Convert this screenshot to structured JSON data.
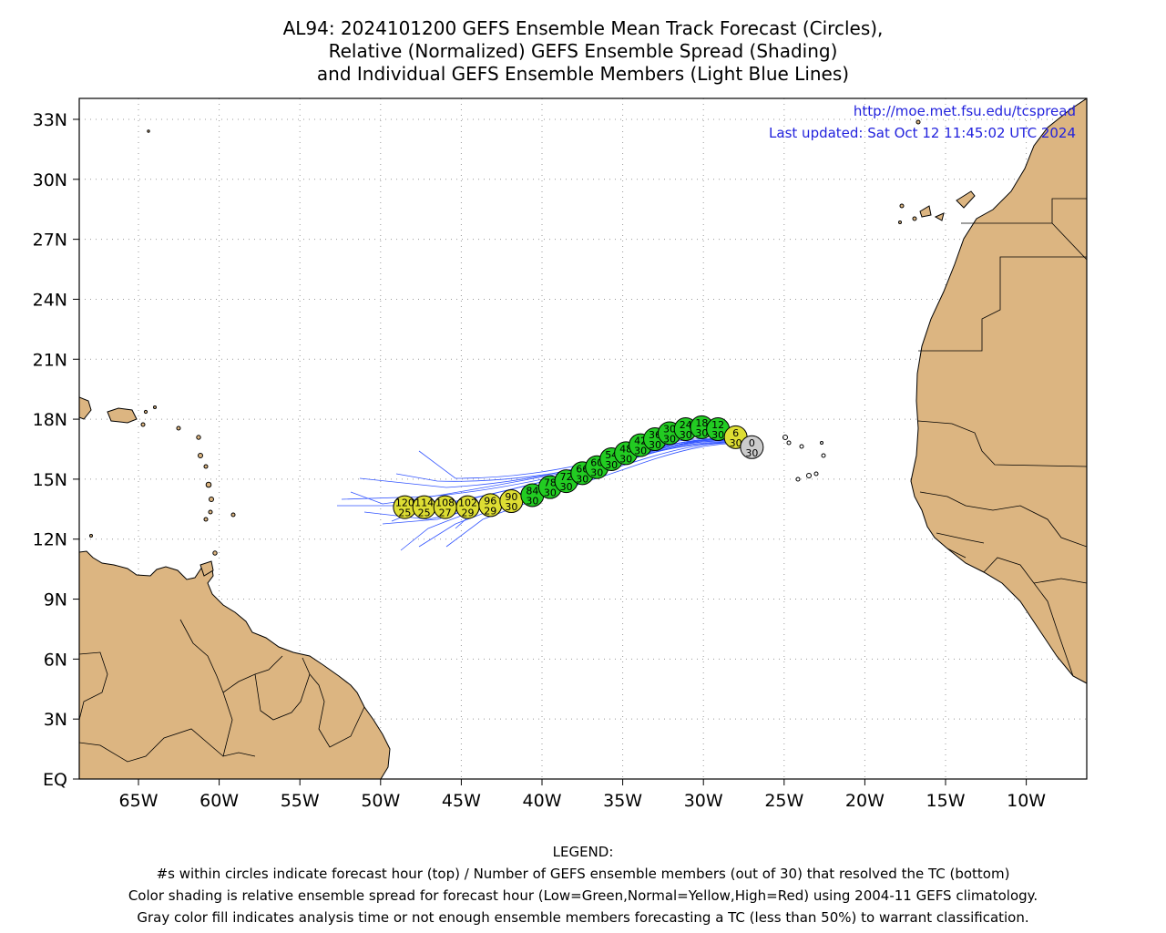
{
  "title": {
    "line1": "AL94: 2024101200 GEFS Ensemble Mean Track Forecast (Circles),",
    "line2": "Relative (Normalized) GEFS Ensemble Spread (Shading)",
    "line3": "and Individual GEFS Ensemble Members (Light Blue Lines)"
  },
  "map_info": {
    "url": "http://moe.met.fsu.edu/tcspread",
    "updated": "Last updated: Sat Oct 12 11:45:02 UTC 2024",
    "link_color": "#2222dd"
  },
  "axes": {
    "lat_labels": [
      "33N",
      "30N",
      "27N",
      "24N",
      "21N",
      "18N",
      "15N",
      "12N",
      "9N",
      "6N",
      "3N",
      "EQ"
    ],
    "lon_labels": [
      "65W",
      "60W",
      "55W",
      "50W",
      "45W",
      "40W",
      "35W",
      "30W",
      "25W",
      "20W",
      "15W",
      "10W"
    ]
  },
  "colors": {
    "land": "#dcb581",
    "green": "#22cc22",
    "yellow": "#dddd33",
    "gray": "#cccccc",
    "member_line": "#3355ff"
  },
  "track": [
    {
      "hour": "0",
      "members": "30",
      "lon": -27.0,
      "lat": 16.6,
      "color": "gray"
    },
    {
      "hour": "6",
      "members": "30",
      "lon": -28.0,
      "lat": 17.1,
      "color": "yellow"
    },
    {
      "hour": "12",
      "members": "30",
      "lon": -29.1,
      "lat": 17.5,
      "color": "green"
    },
    {
      "hour": "18",
      "members": "30",
      "lon": -30.1,
      "lat": 17.6,
      "color": "green"
    },
    {
      "hour": "24",
      "members": "30",
      "lon": -31.1,
      "lat": 17.5,
      "color": "green"
    },
    {
      "hour": "30",
      "members": "30",
      "lon": -32.1,
      "lat": 17.3,
      "color": "green"
    },
    {
      "hour": "36",
      "members": "30",
      "lon": -33.0,
      "lat": 17.0,
      "color": "green"
    },
    {
      "hour": "42",
      "members": "30",
      "lon": -33.9,
      "lat": 16.7,
      "color": "green"
    },
    {
      "hour": "48",
      "members": "30",
      "lon": -34.8,
      "lat": 16.3,
      "color": "green"
    },
    {
      "hour": "54",
      "members": "30",
      "lon": -35.7,
      "lat": 16.0,
      "color": "green"
    },
    {
      "hour": "60",
      "members": "30",
      "lon": -36.6,
      "lat": 15.6,
      "color": "green"
    },
    {
      "hour": "66",
      "members": "30",
      "lon": -37.5,
      "lat": 15.3,
      "color": "green"
    },
    {
      "hour": "72",
      "members": "30",
      "lon": -38.5,
      "lat": 14.9,
      "color": "green"
    },
    {
      "hour": "78",
      "members": "30",
      "lon": -39.5,
      "lat": 14.6,
      "color": "green"
    },
    {
      "hour": "84",
      "members": "30",
      "lon": -40.6,
      "lat": 14.2,
      "color": "green"
    },
    {
      "hour": "90",
      "members": "30",
      "lon": -41.9,
      "lat": 13.9,
      "color": "yellow"
    },
    {
      "hour": "96",
      "members": "29",
      "lon": -43.2,
      "lat": 13.7,
      "color": "yellow"
    },
    {
      "hour": "102",
      "members": "29",
      "lon": -44.6,
      "lat": 13.6,
      "color": "yellow"
    },
    {
      "hour": "108",
      "members": "27",
      "lon": -46.0,
      "lat": 13.6,
      "color": "yellow"
    },
    {
      "hour": "114",
      "members": "25",
      "lon": -47.3,
      "lat": 13.6,
      "color": "yellow"
    },
    {
      "hour": "120",
      "members": "25",
      "lon": -48.5,
      "lat": 13.6,
      "color": "yellow"
    }
  ],
  "legend": {
    "heading": "LEGEND:",
    "line1": "#s within circles indicate forecast hour (top) / Number of GEFS ensemble members (out of 30) that resolved the TC (bottom)",
    "line2": "Color shading is relative ensemble spread for forecast hour (Low=Green,Normal=Yellow,High=Red) using 2004-11 GEFS climatology.",
    "line3": "Gray color fill indicates analysis time or not enough ensemble members forecasting a TC (less than 50%) to warrant classification."
  }
}
